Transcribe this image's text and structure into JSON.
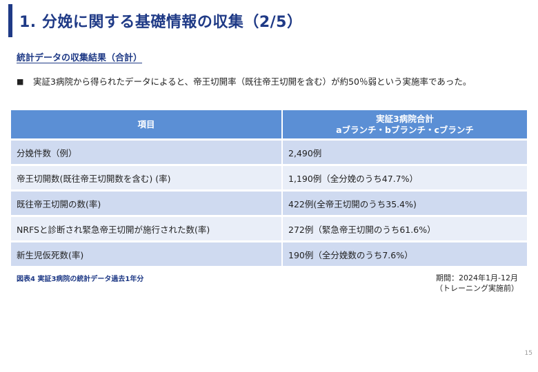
{
  "title": "1. 分娩に関する基礎情報の収集（2/5）",
  "subtitle": "統計データの収集結果（合計）",
  "bullet": "実証3病院から得られたデータによると、帝王切開率（既往帝王切開を含む）が約50％弱という実施率であった。",
  "table": {
    "header_item": "項目",
    "header_value_line1": "実証3病院合計",
    "header_value_line2": "aブランチ・bブランチ・cブランチ",
    "rows": [
      {
        "item": "分娩件数（例）",
        "value": "2,490例"
      },
      {
        "item": "帝王切開数(既往帝王切開数を含む) (率)",
        "value": "1,190例（全分娩のうち47.7%）"
      },
      {
        "item": "既往帝王切開の数(率)",
        "value": "422例(全帝王切開のうち35.4%)"
      },
      {
        "item": "NRFSと診断され緊急帝王切開が施行された数(率)",
        "value": "272例（緊急帝王切開のうち61.6%）"
      },
      {
        "item": "新生児仮死数(率)",
        "value": "190例（全分娩数のうち7.6%）"
      }
    ]
  },
  "caption": "図表4 実証3病院の統計データ過去1年分",
  "period_line1": "期間：2024年1月-12月",
  "period_line2": "（トレーニング実施前）",
  "page_number": "15"
}
